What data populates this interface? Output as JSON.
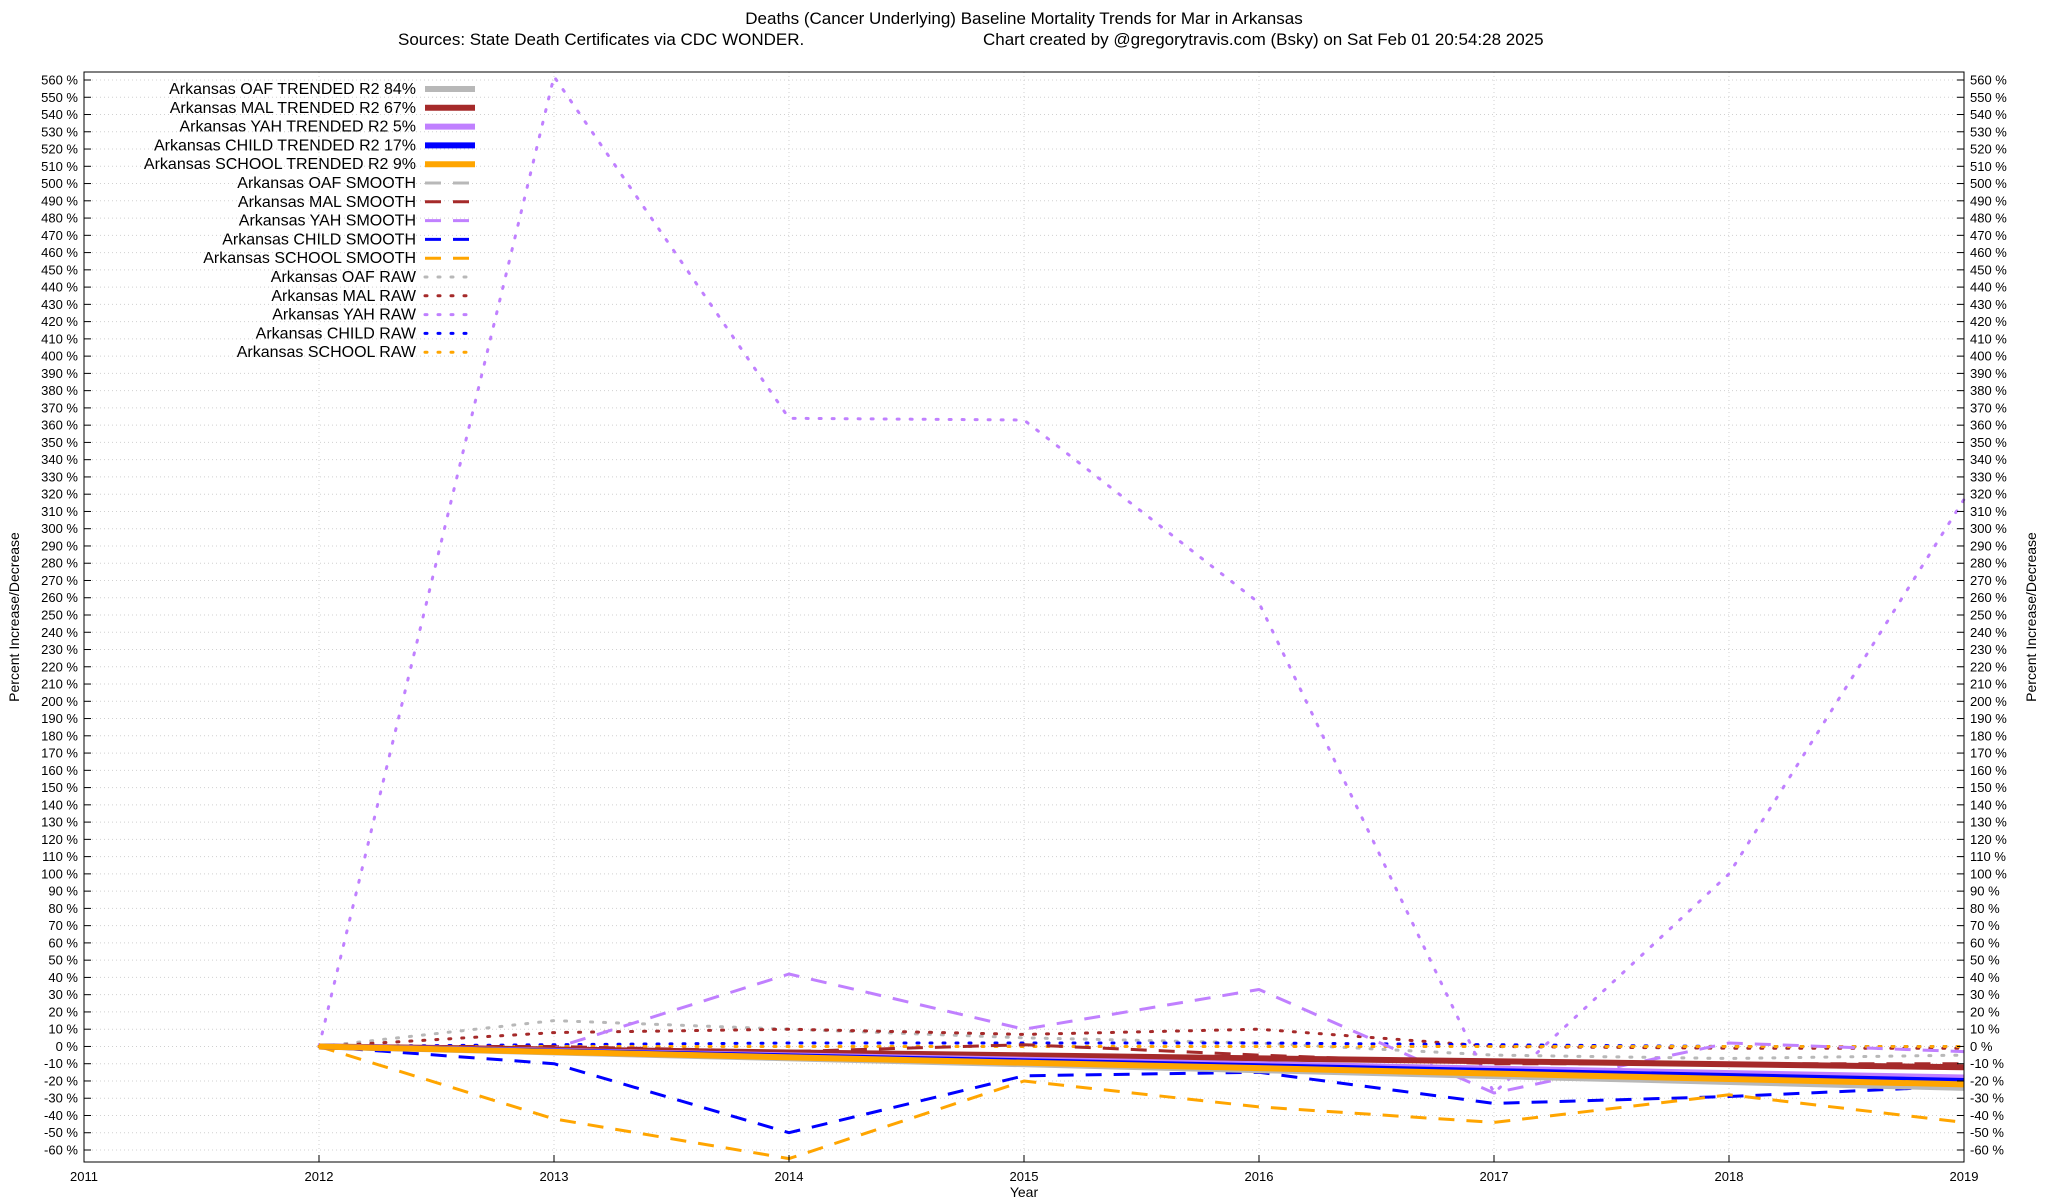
{
  "chart_data": {
    "type": "line",
    "title": "Deaths (Cancer Underlying)  Baseline Mortality Trends for Mar in Arkansas",
    "subtitle_left": "Sources: State Death Certificates via CDC WONDER.",
    "subtitle_right": "Chart created by @gregorytravis.com (Bsky) on Sat Feb 01 20:54:28 2025",
    "xlabel": "Year",
    "ylabel": "Percent Increase/Decrease",
    "y2label": "Percent Increase/Decrease",
    "xlim": [
      2011,
      2019
    ],
    "ylim": [
      -65,
      565
    ],
    "ytick_step": 10,
    "ytick_suffix": " %",
    "x_ticks": [
      "2011",
      "2012",
      "2013",
      "2014",
      "2015",
      "2016",
      "2017",
      "2018",
      "2019"
    ],
    "grid": true,
    "legend_placement": "top-left",
    "series": [
      {
        "name": "Arkansas OAF TRENDED R2  84%",
        "style": "trend",
        "color": "#b8b8b8",
        "x": [
          2012,
          2019
        ],
        "y": [
          0,
          -24
        ]
      },
      {
        "name": "Arkansas MAL TRENDED R2  67%",
        "style": "trend",
        "color": "#a52a2a",
        "x": [
          2012,
          2019
        ],
        "y": [
          0,
          -12
        ]
      },
      {
        "name": "Arkansas YAH TRENDED R2  5%",
        "style": "trend",
        "color": "#c080ff",
        "x": [
          2012,
          2019
        ],
        "y": [
          0,
          -18
        ]
      },
      {
        "name": "Arkansas CHILD TRENDED R2  17%",
        "style": "trend",
        "color": "#0000ff",
        "x": [
          2012,
          2019
        ],
        "y": [
          0,
          -20
        ]
      },
      {
        "name": "Arkansas SCHOOL TRENDED R2  9%",
        "style": "trend",
        "color": "#ffa500",
        "x": [
          2012,
          2019
        ],
        "y": [
          0,
          -22
        ]
      },
      {
        "name": "Arkansas OAF SMOOTH",
        "style": "smooth",
        "color": "#b8b8b8",
        "x": [
          2012,
          2013,
          2014,
          2015,
          2016,
          2017,
          2018,
          2019
        ],
        "y": [
          0,
          -3,
          -5,
          -7,
          -10,
          -13,
          -16,
          -18
        ]
      },
      {
        "name": "Arkansas MAL SMOOTH",
        "style": "smooth",
        "color": "#a52a2a",
        "x": [
          2012,
          2013,
          2014,
          2015,
          2016,
          2017,
          2018,
          2019
        ],
        "y": [
          0,
          0,
          -3,
          1,
          -5,
          -10,
          -10,
          -10
        ]
      },
      {
        "name": "Arkansas YAH SMOOTH",
        "style": "smooth",
        "color": "#c080ff",
        "x": [
          2012,
          2013,
          2014,
          2015,
          2016,
          2017,
          2018,
          2019
        ],
        "y": [
          0,
          -1,
          42,
          10,
          33,
          -27,
          2,
          -3
        ]
      },
      {
        "name": "Arkansas CHILD SMOOTH",
        "style": "smooth",
        "color": "#0000ff",
        "x": [
          2012,
          2013,
          2014,
          2015,
          2016,
          2017,
          2018,
          2019
        ],
        "y": [
          0,
          -10,
          -50,
          -17,
          -15,
          -33,
          -29,
          -23
        ]
      },
      {
        "name": "Arkansas SCHOOL SMOOTH",
        "style": "smooth",
        "color": "#ffa500",
        "x": [
          2012,
          2013,
          2014,
          2015,
          2016,
          2017,
          2018,
          2019
        ],
        "y": [
          0,
          -42,
          -65,
          -20,
          -35,
          -44,
          -28,
          -44
        ]
      },
      {
        "name": "Arkansas OAF RAW",
        "style": "raw",
        "color": "#b8b8b8",
        "x": [
          2012,
          2013,
          2014,
          2015,
          2016,
          2017,
          2018,
          2019
        ],
        "y": [
          0,
          15,
          10,
          5,
          2,
          -5,
          -7,
          -5
        ]
      },
      {
        "name": "Arkansas MAL RAW",
        "style": "raw",
        "color": "#a52a2a",
        "x": [
          2012,
          2013,
          2014,
          2015,
          2016,
          2017,
          2018,
          2019
        ],
        "y": [
          0,
          8,
          10,
          7,
          10,
          0,
          -1,
          -1
        ]
      },
      {
        "name": "Arkansas YAH RAW",
        "style": "raw",
        "color": "#c080ff",
        "x": [
          2012,
          2013,
          2014,
          2015,
          2016,
          2017,
          2018,
          2019
        ],
        "y": [
          0,
          562,
          364,
          363,
          257,
          -27,
          100,
          317
        ]
      },
      {
        "name": "Arkansas CHILD RAW",
        "style": "raw",
        "color": "#0000ff",
        "x": [
          2012,
          2013,
          2014,
          2015,
          2016,
          2017,
          2018,
          2019
        ],
        "y": [
          0,
          1,
          2,
          2,
          2,
          1,
          0,
          0
        ]
      },
      {
        "name": "Arkansas SCHOOL RAW",
        "style": "raw",
        "color": "#ffa500",
        "x": [
          2012,
          2013,
          2014,
          2015,
          2016,
          2017,
          2018,
          2019
        ],
        "y": [
          0,
          0,
          0,
          0,
          0,
          0,
          0,
          0
        ]
      }
    ]
  }
}
